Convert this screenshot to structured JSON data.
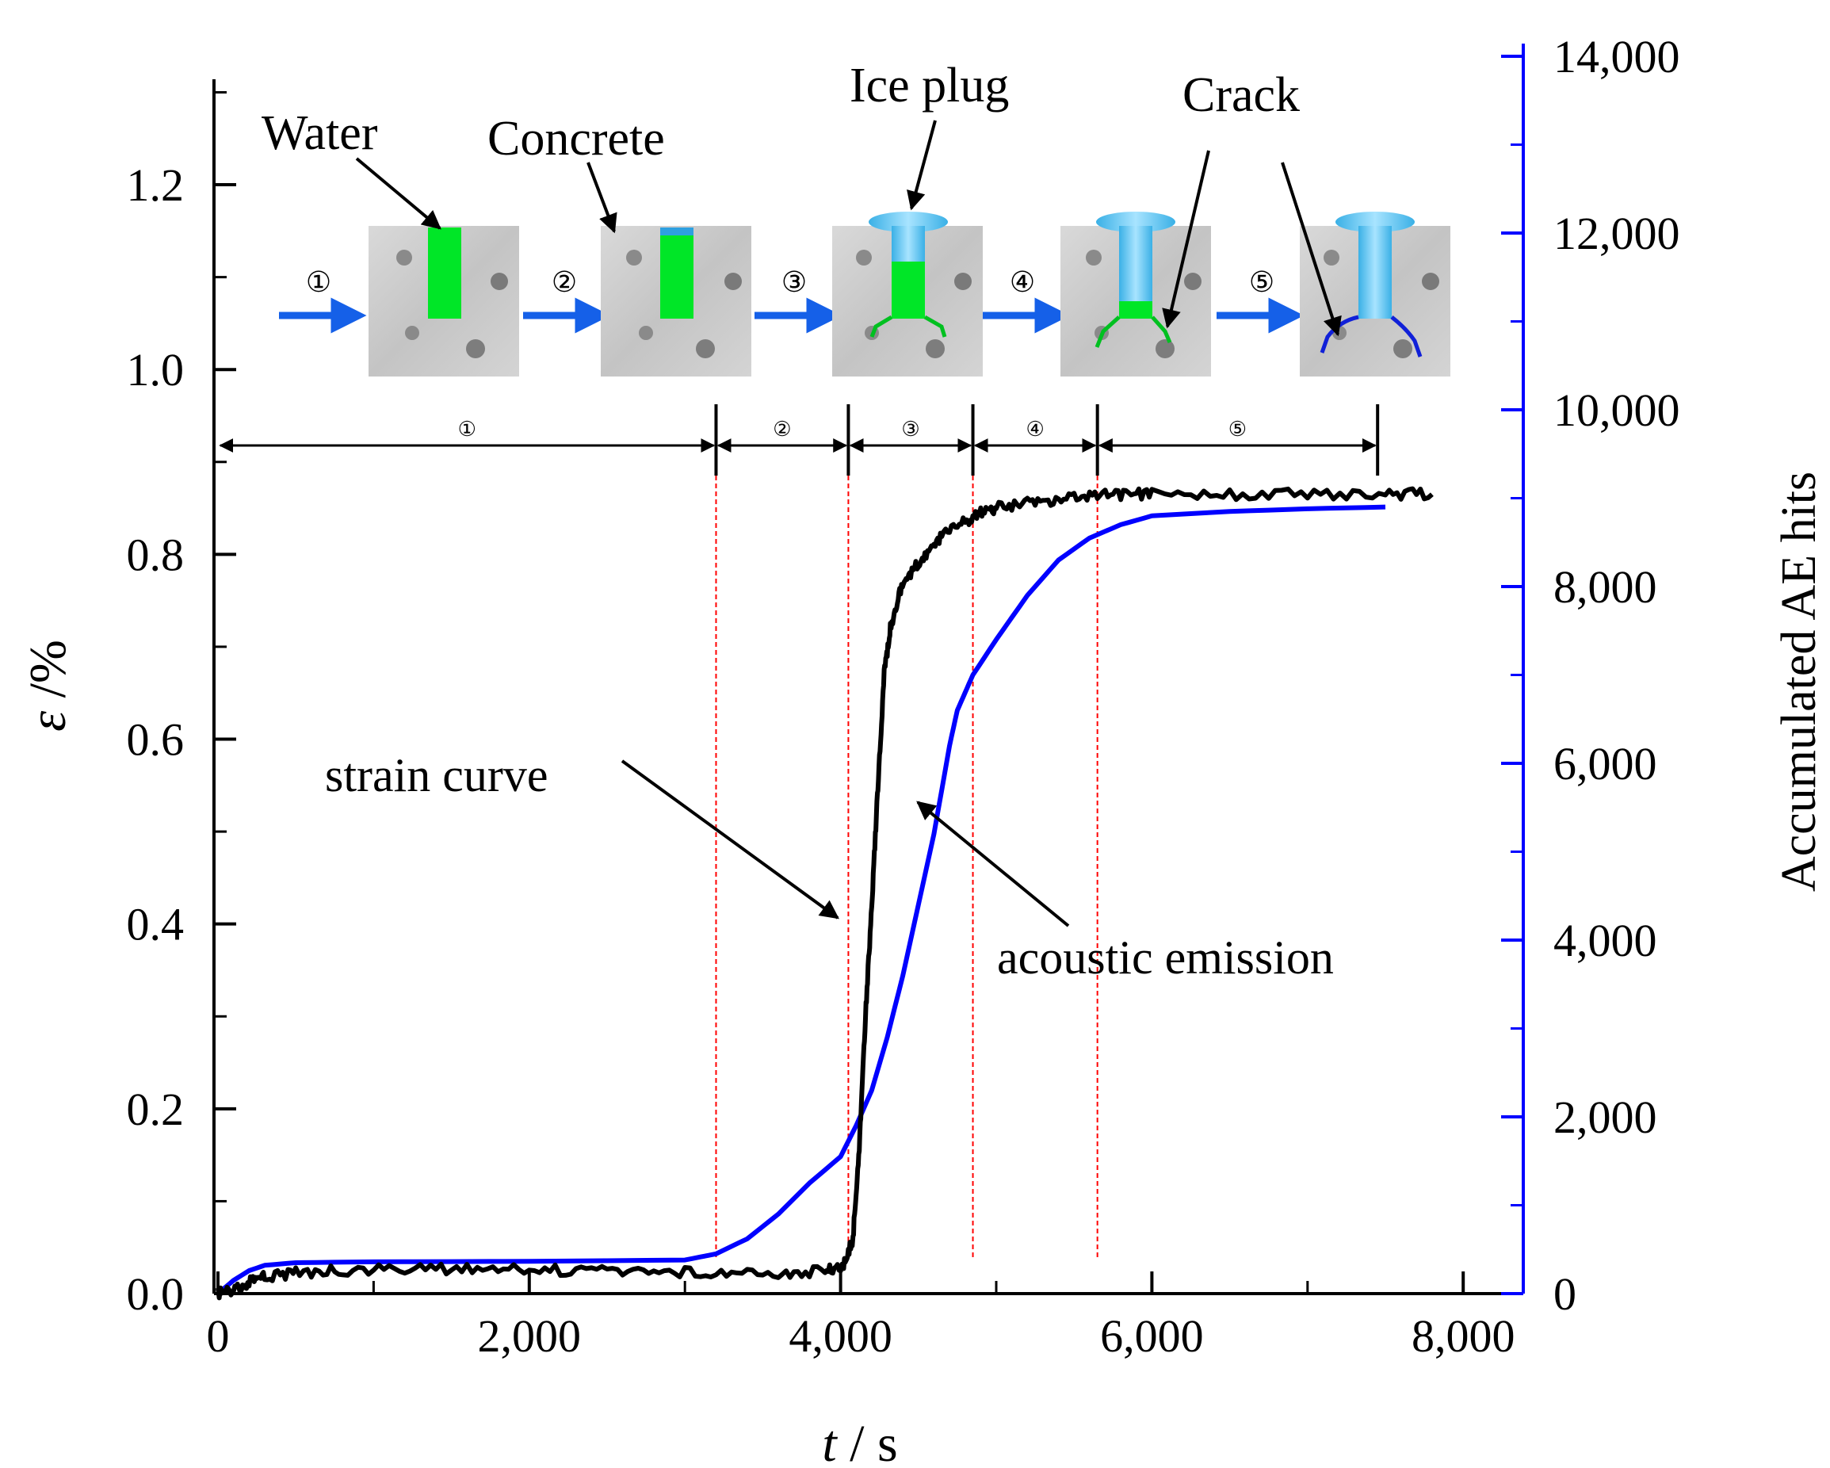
{
  "chart_data": {
    "type": "line",
    "x_axis": {
      "label_var": "t",
      "label_unit": " / s",
      "range": [
        0,
        8500
      ],
      "ticks": [
        0,
        2000,
        4000,
        6000,
        8000
      ],
      "tick_labels": [
        "0",
        "2,000",
        "4,000",
        "6,000",
        "8,000"
      ]
    },
    "y_left": {
      "label_var": "ε",
      "label_unit": " /%",
      "range": [
        0,
        1.3
      ],
      "ticks": [
        0,
        0.2,
        0.4,
        0.6,
        0.8,
        1.0,
        1.2
      ],
      "tick_labels": [
        "0.0",
        "0.2",
        "0.4",
        "0.6",
        "0.8",
        "1.0",
        "1.2"
      ]
    },
    "y_right": {
      "label": "Accumulated AE hits",
      "range": [
        0,
        14000
      ],
      "ticks": [
        0,
        2000,
        4000,
        6000,
        8000,
        10000,
        12000,
        14000
      ],
      "tick_labels": [
        "0",
        "2,000",
        "4,000",
        "6,000",
        "8,000",
        "10,000",
        "12,000",
        "14,000"
      ]
    },
    "series": [
      {
        "name": "strain curve",
        "axis": "left",
        "color": "#000000",
        "x": [
          0,
          100,
          200,
          300,
          500,
          800,
          1200,
          1600,
          2000,
          2400,
          2800,
          3200,
          3600,
          3900,
          4020,
          4080,
          4120,
          4160,
          4200,
          4240,
          4280,
          4320,
          4380,
          4450,
          4550,
          4650,
          4800,
          4900,
          5000,
          5200,
          5400,
          5600,
          5800,
          6000,
          6500,
          7000,
          7500,
          7800
        ],
        "values": [
          0.0,
          0.005,
          0.012,
          0.018,
          0.022,
          0.025,
          0.027,
          0.027,
          0.026,
          0.025,
          0.024,
          0.023,
          0.022,
          0.024,
          0.03,
          0.06,
          0.16,
          0.3,
          0.42,
          0.55,
          0.67,
          0.72,
          0.76,
          0.78,
          0.8,
          0.82,
          0.835,
          0.845,
          0.85,
          0.855,
          0.86,
          0.865,
          0.865,
          0.865,
          0.865,
          0.865,
          0.865,
          0.865
        ]
      },
      {
        "name": "acoustic emission",
        "axis": "right",
        "color": "#0000ff",
        "x": [
          0,
          100,
          200,
          300,
          500,
          1000,
          2000,
          3000,
          3200,
          3400,
          3600,
          3800,
          4000,
          4100,
          4200,
          4300,
          4400,
          4500,
          4600,
          4700,
          4750,
          4800,
          4850,
          5000,
          5200,
          5400,
          5600,
          5800,
          6000,
          6500,
          7000,
          7500
        ],
        "values": [
          0,
          150,
          260,
          320,
          350,
          360,
          365,
          380,
          450,
          620,
          900,
          1250,
          1550,
          1900,
          2300,
          2900,
          3600,
          4400,
          5200,
          6200,
          6600,
          6800,
          7000,
          7400,
          7900,
          8300,
          8550,
          8700,
          8800,
          8850,
          8880,
          8900
        ]
      }
    ],
    "stage_boundaries_x": [
      3200,
      4050,
      4850,
      5650,
      7450
    ],
    "stage_labels": [
      "①",
      "②",
      "③",
      "④",
      "⑤"
    ],
    "diagram_labels": {
      "water": "Water",
      "concrete": "Concrete",
      "ice_plug": "Ice plug",
      "crack": "Crack"
    },
    "annotations": {
      "strain": "strain curve",
      "ae": "acoustic emission"
    }
  }
}
